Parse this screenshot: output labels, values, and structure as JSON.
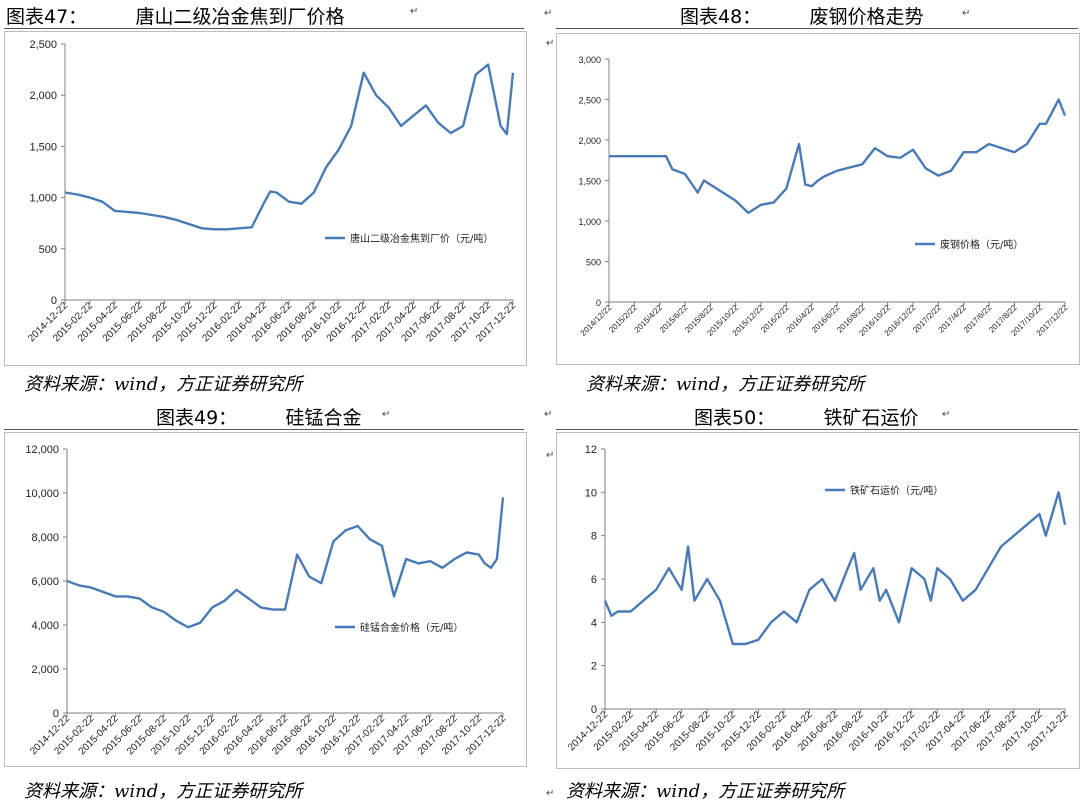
{
  "panels": [
    {
      "title": "图表47：        唐山二级冶金焦到厂价格",
      "source": "资料来源：wind，方正证券研究所",
      "chart_data": {
        "type": "line",
        "ylim": [
          0,
          2500
        ],
        "yticks": [
          "0",
          "500",
          "1,000",
          "1,500",
          "2,000",
          "2,500"
        ],
        "ytick_values": [
          0,
          500,
          1000,
          1500,
          2000,
          2500
        ],
        "xlim": [
          0,
          36
        ],
        "xticks": [
          "2014-12-22",
          "2015-02-22",
          "2015-04-22",
          "2015-06-22",
          "2015-08-22",
          "2015-10-22",
          "2015-12-22",
          "2016-02-22",
          "2016-04-22",
          "2016-06-22",
          "2016-08-22",
          "2016-10-22",
          "2016-12-22",
          "2017-02-22",
          "2017-04-22",
          "2017-06-22",
          "2017-08-22",
          "2017-10-22",
          "2017-12-22"
        ],
        "legend_position": "right",
        "series": [
          {
            "name": "唐山二级冶金焦到厂价（元/吨）",
            "color": "#4a7ab5",
            "x": [
              0,
              1,
              2,
              3,
              4,
              5,
              6,
              7,
              8,
              9,
              10,
              11,
              12,
              13,
              14,
              15,
              16,
              16.5,
              17,
              18,
              19,
              20,
              21,
              22,
              23,
              24,
              25,
              26,
              27,
              28,
              29,
              30,
              31,
              32,
              33,
              34,
              35,
              35.5,
              36
            ],
            "y": [
              1050,
              1030,
              1000,
              960,
              870,
              860,
              850,
              830,
              810,
              780,
              740,
              700,
              690,
              690,
              700,
              710,
              950,
              1060,
              1050,
              960,
              940,
              1050,
              1300,
              1470,
              1700,
              2220,
              2000,
              1880,
              1700,
              1800,
              1900,
              1730,
              1630,
              1700,
              2200,
              2300,
              1700,
              1620,
              2220
            ]
          }
        ]
      }
    },
    {
      "title": "图表48：        废钢价格走势",
      "source": "资料来源：wind，方正证券研究所",
      "chart_data": {
        "type": "line",
        "ylim": [
          0,
          3000
        ],
        "yticks": [
          "0",
          "500",
          "1,000",
          "1,500",
          "2,000",
          "2,500",
          "3,000"
        ],
        "ytick_values": [
          0,
          500,
          1000,
          1500,
          2000,
          2500,
          3000
        ],
        "xlim": [
          0,
          36
        ],
        "xticks": [
          "2014/12/22",
          "2015/2/22",
          "2015/4/22",
          "2015/6/22",
          "2015/8/22",
          "2015/10/22",
          "2015/12/22",
          "2016/2/22",
          "2016/4/22",
          "2016/6/22",
          "2016/8/22",
          "2016/10/22",
          "2016/12/22",
          "2017/2/22",
          "2017/4/22",
          "2017/6/22",
          "2017/8/22",
          "2017/10/22",
          "2017/12/22"
        ],
        "legend_position": "right",
        "series": [
          {
            "name": "废钢价格（元/吨）",
            "color": "#4a7ab5",
            "x": [
              0,
              2,
              4,
              4.5,
              5,
              6,
              7,
              7.5,
              8,
              9,
              10,
              11,
              12,
              13,
              14,
              15,
              15.5,
              16,
              16.5,
              17,
              18,
              19,
              20,
              21,
              22,
              23,
              24,
              25,
              26,
              27,
              28,
              29,
              30,
              31,
              32,
              33,
              34,
              34.5,
              35,
              35.5,
              36
            ],
            "y": [
              1800,
              1800,
              1800,
              1800,
              1640,
              1580,
              1350,
              1500,
              1450,
              1350,
              1250,
              1100,
              1200,
              1230,
              1400,
              1950,
              1450,
              1430,
              1500,
              1550,
              1620,
              1660,
              1700,
              1900,
              1800,
              1780,
              1880,
              1650,
              1560,
              1620,
              1850,
              1850,
              1950,
              1900,
              1850,
              1950,
              2200,
              2200,
              2350,
              2500,
              2300
            ]
          }
        ]
      }
    },
    {
      "title": "图表49：        硅锰合金",
      "source": "资料来源：wind，方正证券研究所",
      "chart_data": {
        "type": "line",
        "ylim": [
          0,
          12000
        ],
        "yticks": [
          "0",
          "2,000",
          "4,000",
          "6,000",
          "8,000",
          "10,000",
          "12,000"
        ],
        "ytick_values": [
          0,
          2000,
          4000,
          6000,
          8000,
          10000,
          12000
        ],
        "xlim": [
          0,
          36
        ],
        "xticks": [
          "2014-12-22",
          "2015-02-22",
          "2015-04-22",
          "2015-06-22",
          "2015-08-22",
          "2015-10-22",
          "2015-12-22",
          "2016-02-22",
          "2016-04-22",
          "2016-06-22",
          "2016-08-22",
          "2016-10-22",
          "2016-12-22",
          "2017-02-22",
          "2017-04-22",
          "2017-06-22",
          "2017-08-22",
          "2017-10-22",
          "2017-12-22"
        ],
        "legend_position": "right",
        "series": [
          {
            "name": "硅锰合金价格（元/吨）",
            "color": "#4a7ab5",
            "x": [
              0,
              1,
              2,
              3,
              4,
              5,
              6,
              7,
              8,
              9,
              10,
              11,
              12,
              13,
              14,
              15,
              16,
              17,
              18,
              19,
              20,
              21,
              22,
              23,
              24,
              25,
              26,
              27,
              28,
              29,
              30,
              31,
              32,
              33,
              34,
              34.5,
              35,
              35.5,
              36
            ],
            "y": [
              6000,
              5800,
              5700,
              5500,
              5300,
              5300,
              5200,
              4800,
              4600,
              4200,
              3900,
              4100,
              4800,
              5100,
              5600,
              5200,
              4800,
              4700,
              4700,
              7200,
              6200,
              5900,
              7800,
              8300,
              8500,
              7900,
              7600,
              5300,
              7000,
              6800,
              6900,
              6600,
              7000,
              7300,
              7200,
              6800,
              6600,
              7000,
              9800
            ]
          }
        ]
      }
    },
    {
      "title": "图表50：        铁矿石运价",
      "source": "资料来源：wind，方正证券研究所",
      "chart_data": {
        "type": "line",
        "ylim": [
          0,
          12
        ],
        "yticks": [
          "0",
          "2",
          "4",
          "6",
          "8",
          "10",
          "12"
        ],
        "ytick_values": [
          0,
          2,
          4,
          6,
          8,
          10,
          12
        ],
        "xlim": [
          0,
          36
        ],
        "xticks": [
          "2014-12-22",
          "2015-02-22",
          "2015-04-22",
          "2015-06-22",
          "2015-08-22",
          "2015-10-22",
          "2015-12-22",
          "2016-02-22",
          "2016-04-22",
          "2016-06-22",
          "2016-08-22",
          "2016-10-22",
          "2016-12-22",
          "2017-02-22",
          "2017-04-22",
          "2017-06-22",
          "2017-08-22",
          "2017-10-22",
          "2017-12-22"
        ],
        "legend_position": "top-left",
        "series": [
          {
            "name": "铁矿石运价（元/吨）",
            "color": "#4a7ab5",
            "x": [
              0,
              0.5,
              1,
              2,
              3,
              4,
              5,
              6,
              6.5,
              7,
              8,
              9,
              10,
              10.5,
              11,
              12,
              13,
              14,
              15,
              16,
              17,
              18,
              19,
              19.5,
              20,
              21,
              21.5,
              22,
              23,
              24,
              25,
              25.5,
              26,
              27,
              28,
              29,
              30,
              31,
              32,
              33,
              34,
              34.5,
              35,
              35.5,
              36
            ],
            "y": [
              5.0,
              4.3,
              4.5,
              4.5,
              5.0,
              5.5,
              6.5,
              5.5,
              7.5,
              5.0,
              6.0,
              5.0,
              3.0,
              3.0,
              3.0,
              3.2,
              4.0,
              4.5,
              4.0,
              5.5,
              6.0,
              5.0,
              6.5,
              7.2,
              5.5,
              6.5,
              5.0,
              5.5,
              4.0,
              6.5,
              6.0,
              5.0,
              6.5,
              6.0,
              5.0,
              5.5,
              6.5,
              7.5,
              8.0,
              8.5,
              9.0,
              8.0,
              9.0,
              10.0,
              8.5
            ]
          }
        ]
      }
    }
  ]
}
